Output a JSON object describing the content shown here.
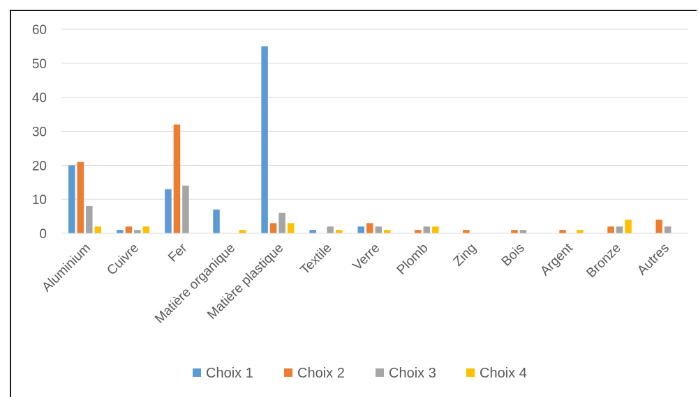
{
  "chart_data": {
    "type": "bar",
    "categories": [
      "Aluminium",
      "Cuivre",
      "Fer",
      "Matière organique",
      "Matière plastique",
      "Textile",
      "Verre",
      "Plomb",
      "Zing",
      "Bois",
      "Argent",
      "Bronze",
      "Autres"
    ],
    "series": [
      {
        "name": "Choix 1",
        "color": "#5B9BD5",
        "values": [
          20,
          1,
          13,
          7,
          55,
          1,
          2,
          0,
          0,
          0,
          0,
          0,
          0
        ]
      },
      {
        "name": "Choix 2",
        "color": "#ED7D31",
        "values": [
          21,
          2,
          32,
          0,
          3,
          0,
          3,
          1,
          1,
          1,
          1,
          2,
          4
        ]
      },
      {
        "name": "Choix 3",
        "color": "#A5A5A5",
        "values": [
          8,
          1,
          14,
          0,
          6,
          2,
          2,
          2,
          0,
          1,
          0,
          2,
          2
        ]
      },
      {
        "name": "Choix 4",
        "color": "#FFC000",
        "values": [
          2,
          2,
          0,
          1,
          3,
          1,
          1,
          2,
          0,
          0,
          1,
          4,
          0
        ]
      }
    ],
    "yticks": [
      0,
      10,
      20,
      30,
      40,
      50,
      60
    ],
    "ylim": [
      0,
      60
    ],
    "grid": true,
    "legend": "bottom",
    "title": "",
    "xlabel": "",
    "ylabel": ""
  }
}
